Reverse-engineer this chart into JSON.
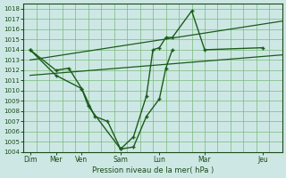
{
  "xlabel": "Pression niveau de la mer( hPa )",
  "ylim": [
    1004,
    1018.5
  ],
  "yticks": [
    1004,
    1005,
    1006,
    1007,
    1008,
    1009,
    1010,
    1011,
    1012,
    1013,
    1014,
    1015,
    1016,
    1017,
    1018
  ],
  "bg_color": "#cde8e4",
  "grid_color": "#7ab87a",
  "line_color": "#1a5c1a",
  "xlim": [
    0,
    20
  ],
  "xtick_positions": [
    0.5,
    2.5,
    4.5,
    7.5,
    10.5,
    14.0,
    18.5
  ],
  "xtick_labels": [
    "Dim",
    "Mer",
    "Ven",
    "Sam",
    "Lun",
    "Mar",
    "Jeu"
  ],
  "x_grid_lines": [
    0,
    1,
    2,
    3,
    4,
    5,
    6,
    7,
    8,
    9,
    10,
    11,
    12,
    13,
    14,
    15,
    16,
    17,
    18,
    19,
    20
  ],
  "series1_x": [
    0.5,
    2.5,
    4.5,
    5.5,
    6.5,
    7.5,
    8.5,
    9.5,
    10.5,
    11.0,
    11.5
  ],
  "series1_y": [
    1014,
    1011.5,
    1010.2,
    1007.5,
    1007.0,
    1004.3,
    1004.5,
    1007.5,
    1009.2,
    1012.2,
    1014.0
  ],
  "series2_x": [
    0.5,
    2.5,
    3.5,
    4.5,
    5.0,
    7.5,
    8.5,
    9.5,
    10.0,
    10.5,
    11.0,
    11.5,
    13.0,
    14.0,
    18.5
  ],
  "series2_y": [
    1014,
    1012.0,
    1012.2,
    1010.2,
    1008.5,
    1004.3,
    1005.5,
    1009.5,
    1014.0,
    1014.2,
    1015.2,
    1015.2,
    1017.8,
    1014.0,
    1014.2
  ],
  "trend1_x": [
    0.5,
    20
  ],
  "trend1_y": [
    1011.5,
    1013.5
  ],
  "trend2_x": [
    0.5,
    20
  ],
  "trend2_y": [
    1013.0,
    1016.8
  ]
}
